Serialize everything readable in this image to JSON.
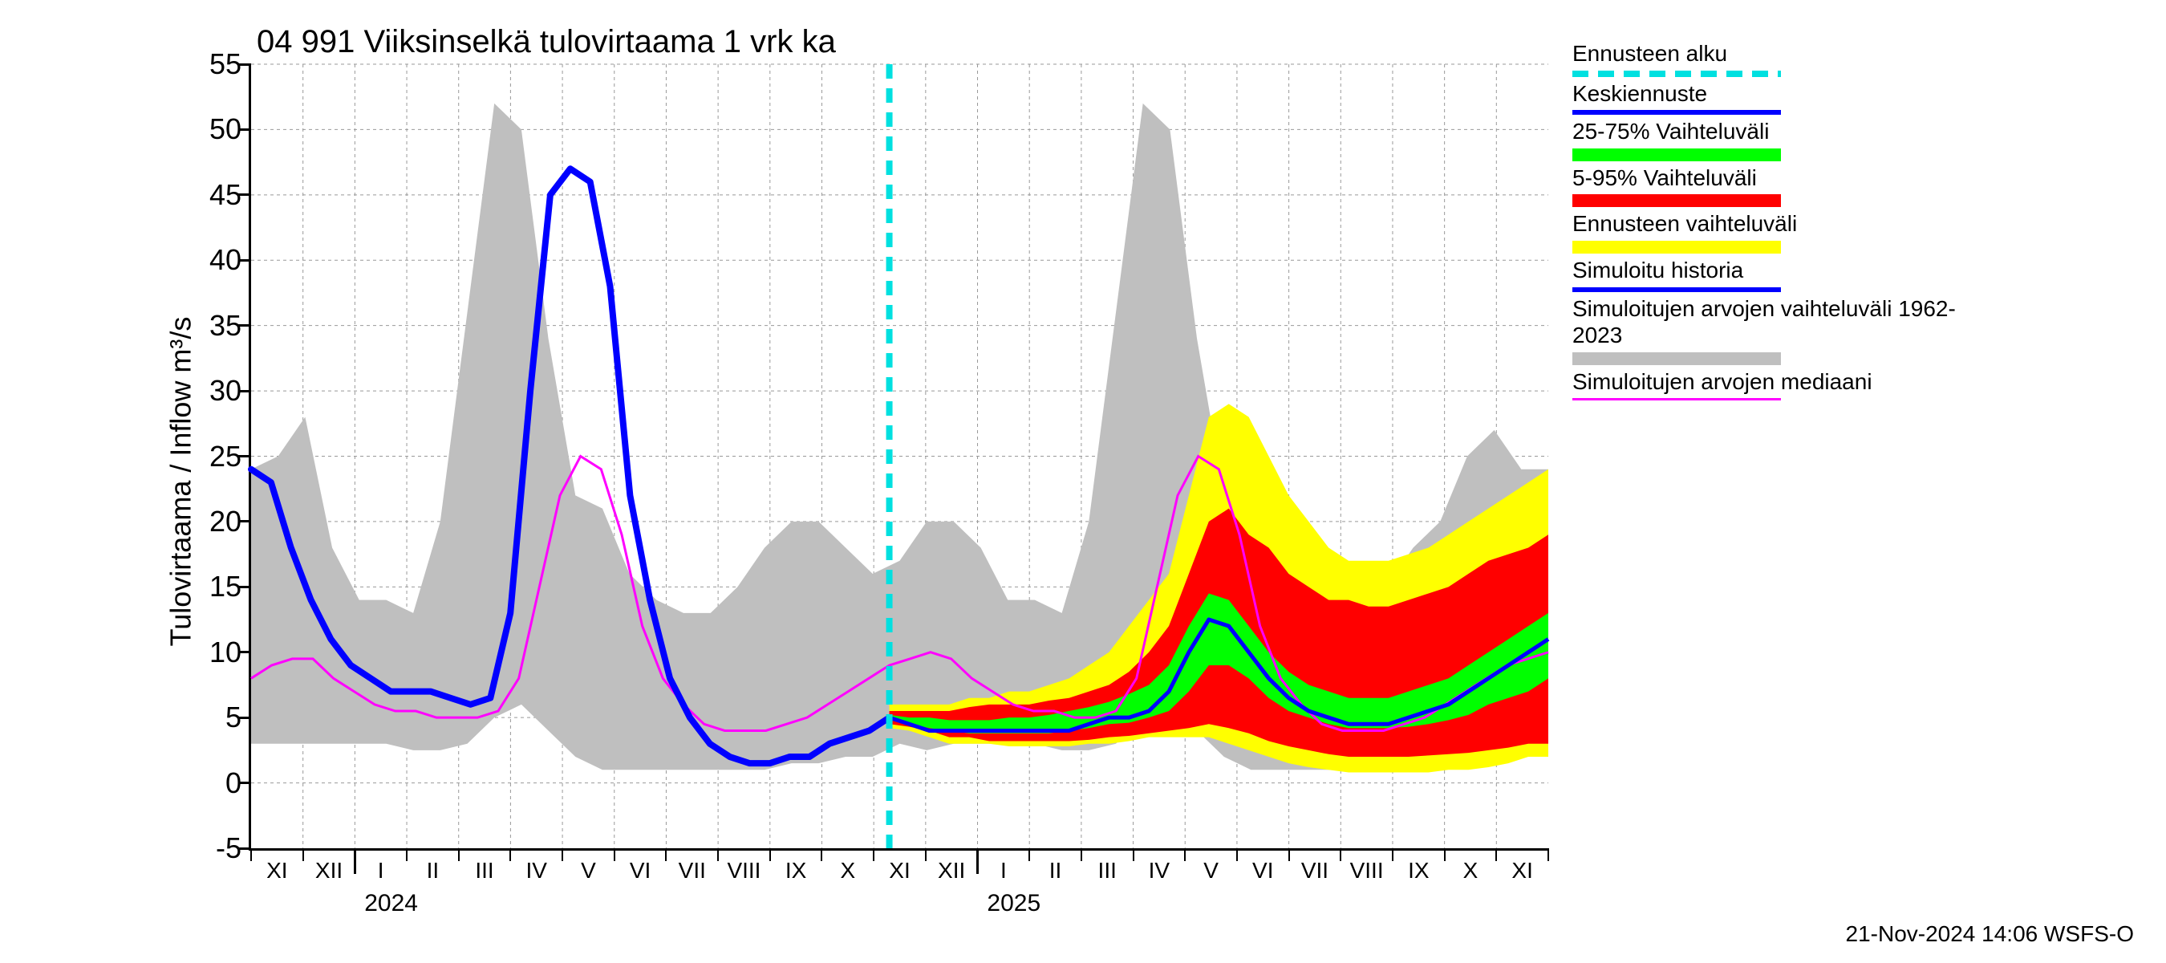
{
  "title": "04 991 Viiksinselkä tulovirtaama 1 vrk ka",
  "y_axis_label": "Tulovirtaama / Inflow    m³/s",
  "footer": "21-Nov-2024 14:06 WSFS-O",
  "chart": {
    "type": "line-band",
    "ylim": [
      -5,
      55
    ],
    "ytick_step": 5,
    "y_ticks": [
      -5,
      0,
      5,
      10,
      15,
      20,
      25,
      30,
      35,
      40,
      45,
      50,
      55
    ],
    "x_months": [
      "XI",
      "XII",
      "I",
      "II",
      "III",
      "IV",
      "V",
      "VI",
      "VII",
      "VIII",
      "IX",
      "X",
      "XI",
      "XII",
      "I",
      "II",
      "III",
      "IV",
      "V",
      "VI",
      "VII",
      "VIII",
      "IX",
      "X",
      "XI"
    ],
    "x_year_labels": [
      {
        "label": "2024",
        "at_index": 2
      },
      {
        "label": "2025",
        "at_index": 14
      }
    ],
    "forecast_start_index": 12.3,
    "background_color": "#ffffff",
    "grid_color": "#999999",
    "colors": {
      "forecast_start": "#00e0e0",
      "mean_forecast": "#0000ff",
      "band_25_75": "#00ff00",
      "band_5_95": "#ff0000",
      "band_full": "#ffff00",
      "history": "#0000ff",
      "sim_range": "#bfbfbf",
      "median": "#ff00ff"
    },
    "series": {
      "sim_range_upper": [
        24,
        25,
        28,
        18,
        14,
        14,
        13,
        20,
        36,
        52,
        50,
        34,
        22,
        21,
        16,
        14,
        13,
        13,
        15,
        18,
        20,
        20,
        18,
        16,
        17,
        20,
        20,
        18,
        14,
        14,
        13,
        20,
        36,
        52,
        50,
        34,
        22,
        21,
        16,
        14,
        13,
        13,
        15,
        18,
        20,
        25,
        27,
        24,
        24
      ],
      "sim_range_lower": [
        3,
        3,
        3,
        3,
        3,
        3,
        2.5,
        2.5,
        3,
        5,
        6,
        4,
        2,
        1,
        1,
        1,
        1,
        1,
        1,
        1,
        1.5,
        1.5,
        2,
        2,
        3,
        2.5,
        3,
        3,
        3,
        3,
        2.5,
        2.5,
        3,
        5,
        6,
        4,
        2,
        1,
        1,
        1,
        1,
        1,
        1,
        1,
        1.5,
        1.5,
        2,
        2,
        3
      ],
      "history": [
        24,
        23,
        18,
        14,
        11,
        9,
        8,
        7,
        7,
        7,
        6.5,
        6,
        6.5,
        13,
        30,
        45,
        47,
        46,
        38,
        22,
        14,
        8,
        5,
        3,
        2,
        1.5,
        1.5,
        2,
        2,
        3,
        3.5,
        4,
        5
      ],
      "median": [
        8,
        9,
        9.5,
        9.5,
        8,
        7,
        6,
        5.5,
        5.5,
        5,
        5,
        5,
        5.5,
        8,
        15,
        22,
        25,
        24,
        19,
        12,
        8,
        6,
        4.5,
        4,
        4,
        4,
        4.5,
        5,
        6,
        7,
        8,
        9,
        9.5,
        10,
        9.5,
        8,
        7,
        6,
        5.5,
        5.5,
        5,
        5,
        5.5,
        8,
        15,
        22,
        25,
        24,
        19,
        12,
        8,
        6,
        4.5,
        4,
        4,
        4,
        4.5,
        5,
        6,
        7,
        8,
        9,
        9.5,
        10
      ],
      "mean_forecast_x0": 12.3,
      "mean_forecast": [
        5,
        4.5,
        4,
        4,
        4,
        4,
        4,
        4,
        4,
        4,
        4.5,
        5,
        5,
        5.5,
        7,
        10,
        12.5,
        12,
        10,
        8,
        6.5,
        5.5,
        5,
        4.5,
        4.5,
        4.5,
        5,
        5.5,
        6,
        7,
        8,
        9,
        10,
        11
      ],
      "band_full_upper": [
        6,
        6,
        6,
        6,
        6.5,
        6.5,
        7,
        7,
        7.5,
        8,
        9,
        10,
        12,
        14,
        16,
        22,
        28,
        29,
        28,
        25,
        22,
        20,
        18,
        17,
        17,
        17,
        17.5,
        18,
        19,
        20,
        21,
        22,
        23,
        24
      ],
      "band_full_lower": [
        4.2,
        4,
        3.5,
        3,
        3,
        3,
        2.8,
        2.8,
        2.8,
        2.8,
        3,
        3,
        3.2,
        3.5,
        3.5,
        3.5,
        3.5,
        3,
        2.5,
        2,
        1.5,
        1.2,
        1,
        0.8,
        0.8,
        0.8,
        0.8,
        0.8,
        1,
        1,
        1.2,
        1.5,
        2,
        2
      ],
      "band_5_95_upper": [
        5.5,
        5.5,
        5.5,
        5.5,
        5.8,
        6,
        6,
        6,
        6.3,
        6.5,
        7,
        7.5,
        8.5,
        10,
        12,
        16,
        20,
        21,
        19,
        18,
        16,
        15,
        14,
        14,
        13.5,
        13.5,
        14,
        14.5,
        15,
        16,
        17,
        17.5,
        18,
        19
      ],
      "band_5_95_lower": [
        4.5,
        4.3,
        4,
        3.5,
        3.5,
        3.2,
        3.2,
        3.2,
        3.2,
        3.2,
        3.3,
        3.5,
        3.6,
        3.8,
        4,
        4.2,
        4.5,
        4.2,
        3.8,
        3.2,
        2.8,
        2.5,
        2.2,
        2,
        2,
        2,
        2,
        2.1,
        2.2,
        2.3,
        2.5,
        2.7,
        3,
        3
      ],
      "band_25_75_upper": [
        5.2,
        5,
        5,
        4.8,
        4.8,
        4.8,
        5,
        5,
        5.2,
        5.5,
        5.8,
        6.2,
        6.8,
        7.5,
        9,
        12,
        14.5,
        14,
        12,
        10,
        8.5,
        7.5,
        7,
        6.5,
        6.5,
        6.5,
        7,
        7.5,
        8,
        9,
        10,
        11,
        12,
        13
      ],
      "band_25_75_lower": [
        4.8,
        4.5,
        4.2,
        4,
        3.8,
        3.8,
        3.8,
        3.8,
        3.8,
        4,
        4.2,
        4.5,
        4.6,
        5,
        5.5,
        7,
        9,
        9,
        8,
        6.5,
        5.5,
        5,
        4.5,
        4.2,
        4.2,
        4.2,
        4.3,
        4.5,
        4.8,
        5.2,
        6,
        6.5,
        7,
        8
      ]
    }
  },
  "legend": [
    {
      "label": "Ennusteen alku",
      "style": "dashed",
      "color_key": "forecast_start"
    },
    {
      "label": "Keskiennuste",
      "style": "line",
      "color_key": "mean_forecast"
    },
    {
      "label": "25-75% Vaihteluväli",
      "style": "band",
      "color_key": "band_25_75"
    },
    {
      "label": "5-95% Vaihteluväli",
      "style": "band",
      "color_key": "band_5_95"
    },
    {
      "label": "Ennusteen vaihteluväli",
      "style": "band",
      "color_key": "band_full"
    },
    {
      "label": "Simuloitu historia",
      "style": "line",
      "color_key": "history"
    },
    {
      "label": "Simuloitujen arvojen vaihteluväli 1962-2023",
      "style": "band",
      "color_key": "sim_range"
    },
    {
      "label": "Simuloitujen arvojen mediaani",
      "style": "thin",
      "color_key": "median"
    }
  ]
}
